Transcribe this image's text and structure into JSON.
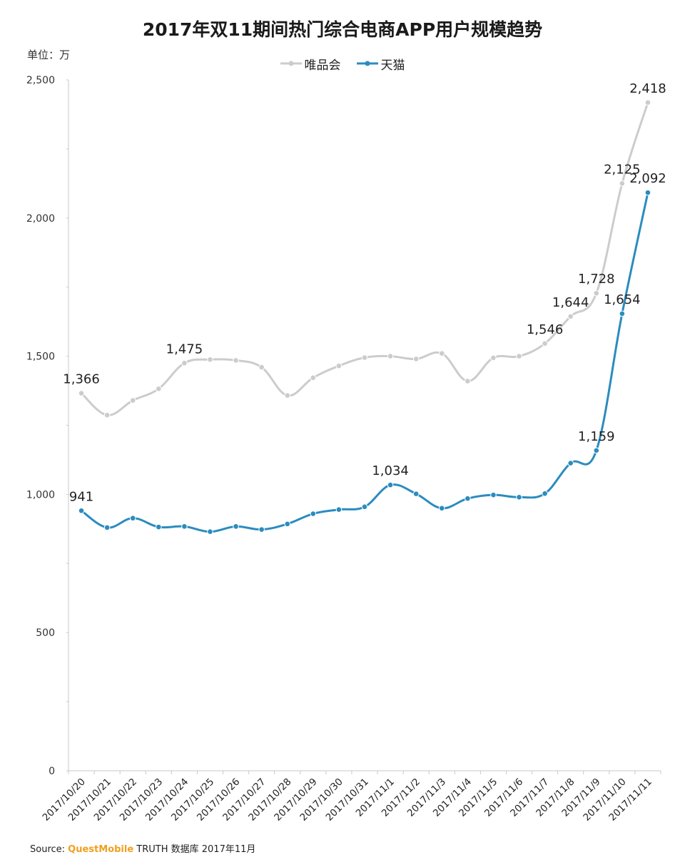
{
  "header": {
    "title": "2017年双11期间热门综合电商APP用户规模趋势",
    "unit": "单位：万"
  },
  "footer": {
    "source_label": "Source:",
    "brand": "QuestMobile",
    "rest": "TRUTH 数据库 2017年11月"
  },
  "colors": {
    "series_0": "#cccccc",
    "series_1": "#2b8cbe"
  },
  "chart_data": {
    "type": "line",
    "title": "2017年双11期间热门综合电商APP用户规模趋势",
    "ylabel": "单位：万",
    "ylim": [
      0,
      2500
    ],
    "yticks": [
      0,
      500,
      1000,
      1500,
      2000,
      2500
    ],
    "ytick_labels": [
      "0",
      "500",
      "1,000",
      "1,500",
      "2,000",
      "2,500"
    ],
    "grid": false,
    "legend": "top-center",
    "categories": [
      "2017/10/20",
      "2017/10/21",
      "2017/10/22",
      "2017/10/23",
      "2017/10/24",
      "2017/10/25",
      "2017/10/26",
      "2017/10/27",
      "2017/10/28",
      "2017/10/29",
      "2017/10/30",
      "2017/10/31",
      "2017/11/1",
      "2017/11/2",
      "2017/11/3",
      "2017/11/4",
      "2017/11/5",
      "2017/11/6",
      "2017/11/7",
      "2017/11/8",
      "2017/11/9",
      "2017/11/10",
      "2017/11/11"
    ],
    "series": [
      {
        "name": "唯品会",
        "values": [
          1366,
          1287,
          1340,
          1382,
          1475,
          1488,
          1485,
          1460,
          1358,
          1422,
          1465,
          1495,
          1500,
          1490,
          1510,
          1410,
          1494,
          1500,
          1546,
          1644,
          1728,
          2125,
          2418
        ],
        "labels": {
          "0": "1,366",
          "4": "1,475",
          "18": "1,546",
          "19": "1,644",
          "20": "1,728",
          "21": "2,125",
          "22": "2,418"
        }
      },
      {
        "name": "天猫",
        "values": [
          941,
          880,
          914,
          882,
          884,
          865,
          884,
          873,
          893,
          930,
          945,
          955,
          1034,
          1002,
          950,
          985,
          998,
          990,
          1003,
          1113,
          1159,
          1654,
          2092
        ],
        "labels": {
          "0": "941",
          "12": "1,034",
          "20": "1,159",
          "21": "1,654",
          "22": "2,092"
        }
      }
    ]
  }
}
